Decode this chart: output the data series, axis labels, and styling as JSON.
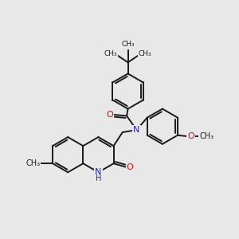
{
  "background_color": "#e8e8e8",
  "bond_color": "#1a1a1a",
  "bond_width": 1.4,
  "N_color": "#2222bb",
  "O_color": "#cc1111",
  "figsize": [
    3.0,
    3.0
  ],
  "dpi": 100,
  "xlim": [
    -1.5,
    8.5
  ],
  "ylim": [
    -1.0,
    9.0
  ]
}
